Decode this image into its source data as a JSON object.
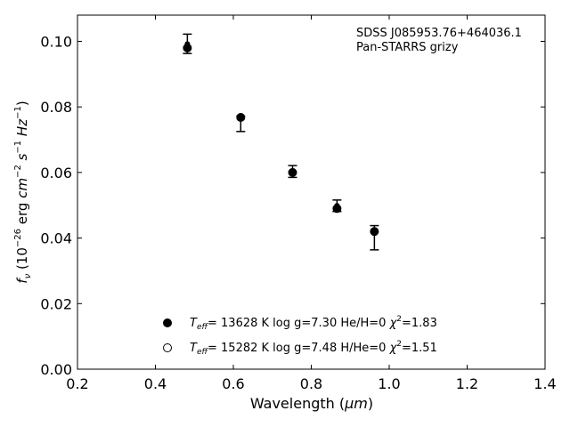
{
  "chart_data": {
    "type": "scatter",
    "xlabel_prefix": "Wavelength (",
    "xlabel_unit": "μm",
    "xlabel_suffix": ")",
    "ylabel": {
      "f": "f",
      "nu": "ν",
      "open": " (10",
      "exp1": "−26",
      "erg": " erg ",
      "cm": "cm",
      "exp2": "−2",
      "s": " s",
      "exp3": "−1",
      "hz": " Hz",
      "exp4": "−1",
      "close": ")"
    },
    "xlim": [
      0.2,
      1.4
    ],
    "ylim": [
      0.0,
      0.108
    ],
    "xticks": [
      0.2,
      0.4,
      0.6,
      0.8,
      1.0,
      1.2,
      1.4
    ],
    "xtick_labels": [
      "0.2",
      "0.4",
      "0.6",
      "0.8",
      "1.0",
      "1.2",
      "1.4"
    ],
    "yticks": [
      0.0,
      0.02,
      0.04,
      0.06,
      0.08,
      0.1
    ],
    "ytick_labels": [
      "0.00",
      "0.02",
      "0.04",
      "0.06",
      "0.08",
      "0.10"
    ],
    "annotation": [
      "SDSS J085953.76+464036.1",
      "Pan-STARRS grizy"
    ],
    "observed": [
      {
        "x": 0.482,
        "y": 0.0992,
        "lo": 0.0963,
        "hi": 0.1022
      },
      {
        "x": 0.619,
        "y": 0.0766,
        "lo": 0.0725,
        "hi": 0.0772
      },
      {
        "x": 0.752,
        "y": 0.0603,
        "lo": 0.0585,
        "hi": 0.0621
      },
      {
        "x": 0.866,
        "y": 0.0499,
        "lo": 0.0481,
        "hi": 0.0516
      },
      {
        "x": 0.962,
        "y": 0.0425,
        "lo": 0.0364,
        "hi": 0.0438
      }
    ],
    "series": [
      {
        "marker": "filled",
        "values": [
          [
            0.482,
            0.098
          ],
          [
            0.619,
            0.0768
          ],
          [
            0.752,
            0.06
          ],
          [
            0.866,
            0.049
          ],
          [
            0.962,
            0.042
          ]
        ],
        "label": {
          "T": "T",
          "sub": "eff",
          "mid": "= 13628 K  log g=7.30  He/H=0  ",
          "chi": "χ",
          "sup": "2",
          "end": "=1.83"
        }
      },
      {
        "marker": "open",
        "values": [],
        "label": {
          "T": "T",
          "sub": "eff",
          "mid": "= 15282 K  log g=7.48  H/He=0  ",
          "chi": "χ",
          "sup": "2",
          "end": "=1.51"
        }
      }
    ],
    "legend_position": "lower-center",
    "grid": false
  }
}
